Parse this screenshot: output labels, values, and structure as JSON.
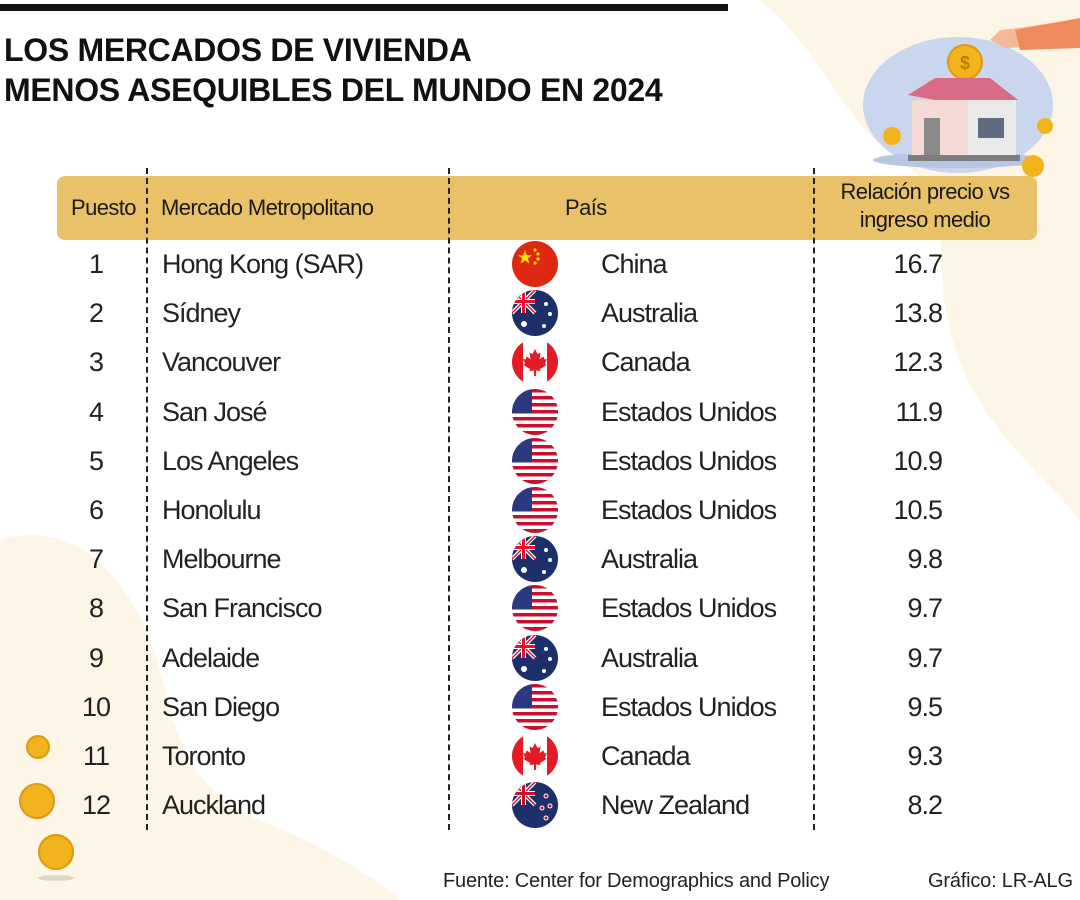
{
  "title_lines": [
    "LOS MERCADOS DE VIVIENDA",
    "MENOS ASEQUIBLES DEL MUNDO EN 2024"
  ],
  "chart_data": {
    "type": "table",
    "columns": {
      "rank": "Puesto",
      "market": "Mercado Metropolitano",
      "country": "País",
      "ratio": "Relación precio vs ingreso medio"
    },
    "rows": [
      {
        "rank": "1",
        "market": "Hong Kong (SAR)",
        "country": "China",
        "flag": "china-flag-icon",
        "ratio": "16.7"
      },
      {
        "rank": "2",
        "market": "Sídney",
        "country": "Australia",
        "flag": "australia-flag-icon",
        "ratio": "13.8"
      },
      {
        "rank": "3",
        "market": "Vancouver",
        "country": "Canada",
        "flag": "canada-flag-icon",
        "ratio": "12.3"
      },
      {
        "rank": "4",
        "market": "San José",
        "country": "Estados Unidos",
        "flag": "usa-flag-icon",
        "ratio": "11.9"
      },
      {
        "rank": "5",
        "market": "Los Angeles",
        "country": "Estados Unidos",
        "flag": "usa-flag-icon",
        "ratio": "10.9"
      },
      {
        "rank": "6",
        "market": "Honolulu",
        "country": "Estados Unidos",
        "flag": "usa-flag-icon",
        "ratio": "10.5"
      },
      {
        "rank": "7",
        "market": "Melbourne",
        "country": "Australia",
        "flag": "australia-flag-icon",
        "ratio": "9.8"
      },
      {
        "rank": "8",
        "market": "San Francisco",
        "country": "Estados Unidos",
        "flag": "usa-flag-icon",
        "ratio": "9.7"
      },
      {
        "rank": "9",
        "market": "Adelaide",
        "country": "Australia",
        "flag": "australia-flag-icon",
        "ratio": "9.7"
      },
      {
        "rank": "10",
        "market": "San Diego",
        "country": "Estados Unidos",
        "flag": "usa-flag-icon",
        "ratio": "9.5"
      },
      {
        "rank": "11",
        "market": "Toronto",
        "country": "Canada",
        "flag": "canada-flag-icon",
        "ratio": "9.3"
      },
      {
        "rank": "12",
        "market": "Auckland",
        "country": "New Zealand",
        "flag": "new-zealand-flag-icon",
        "ratio": "8.2"
      }
    ]
  },
  "footer": {
    "source": "Fuente: Center for Demographics and Policy",
    "credit": "Gráfico: LR-ALG"
  },
  "colors": {
    "header_bg": "#e9c169",
    "background_blob": "#fdf5e6",
    "accent_coin": "#f2b31c"
  },
  "illustration": "hand-coin-house-icon",
  "decoration": "coin-stack-icon"
}
